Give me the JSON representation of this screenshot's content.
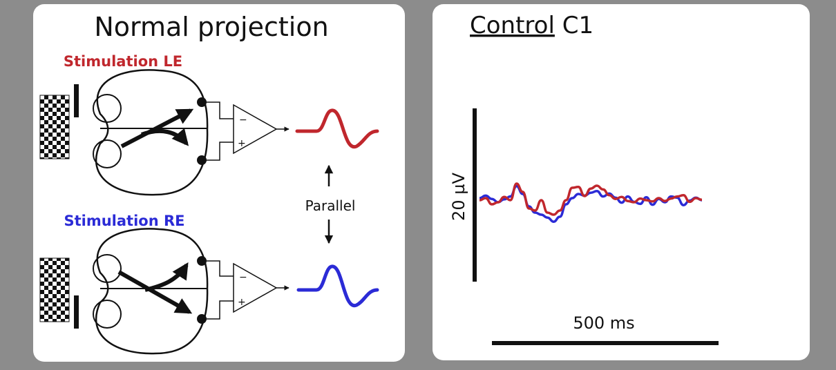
{
  "left_panel": {
    "title": "Normal projection",
    "stim_le": "Stimulation  LE",
    "stim_re": "Stimulation  RE",
    "parallel": "Parallel",
    "amp_minus": "−",
    "amp_plus": "+"
  },
  "right_panel": {
    "title_underlined": "Control",
    "title_rest": " C1",
    "scale_voltage": "20 µV",
    "scale_time": "500 ms"
  },
  "colors": {
    "le": "#c0272d",
    "re": "#2b2bd6",
    "background": "#8c8c8c",
    "panel": "#ffffff",
    "ink": "#111111"
  },
  "chart_data": {
    "type": "line",
    "title": "Control C1",
    "xlabel": "500 ms",
    "ylabel": "20 µV",
    "grid": false,
    "series": [
      {
        "color": "#c0272d",
        "y": [
          0,
          0.5,
          -1,
          -0.5,
          0.8,
          0,
          4,
          2,
          -2,
          -2.5,
          0,
          -3,
          -3.5,
          -2.5,
          0,
          3,
          3.2,
          1,
          2.8,
          3.5,
          2.6,
          1.2,
          0.3,
          0.8,
          -0.2,
          -0.5,
          0.4,
          0,
          -0.3,
          0.5,
          -0.2,
          0.4,
          0.9,
          1.2,
          -0.4,
          0.5,
          0.1
        ]
      },
      {
        "color": "#2b2bd6",
        "y": [
          0.5,
          1.1,
          0.3,
          -0.5,
          0.2,
          0.9,
          3.4,
          1.5,
          -1.5,
          -3,
          -3.5,
          -4.2,
          -5.2,
          -4,
          -1,
          0.5,
          1.5,
          1.1,
          1.8,
          2.2,
          0.9,
          1.6,
          0.6,
          -0.6,
          0.9,
          -0.4,
          -0.9,
          0.7,
          -1.1,
          0.3,
          -0.5,
          0.9,
          0.6,
          -1.2,
          -0.1,
          0.6,
          0
        ]
      }
    ]
  }
}
